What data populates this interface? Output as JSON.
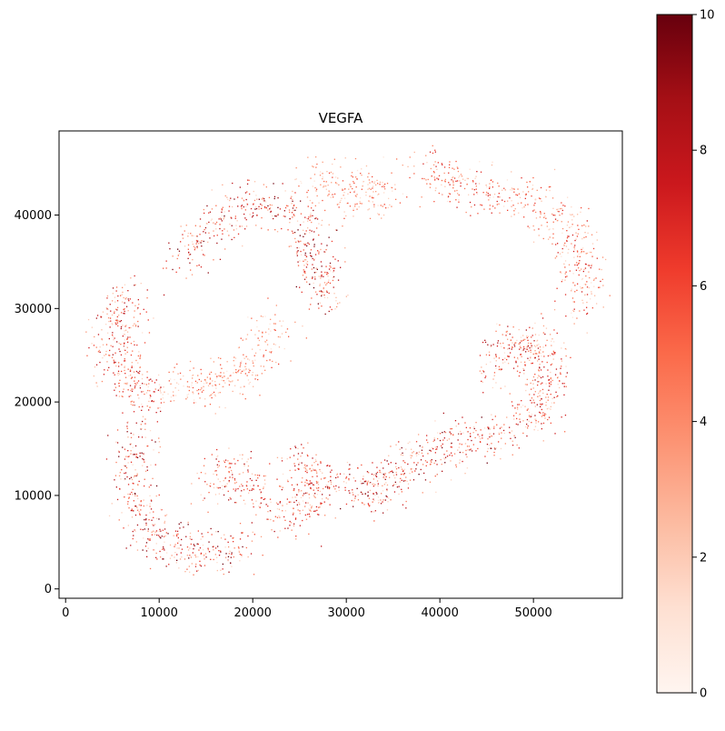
{
  "chart_data": {
    "type": "scatter",
    "title": "VEGFA",
    "xlabel": "",
    "ylabel": "",
    "xlim": [
      -700,
      59500
    ],
    "ylim": [
      -1000,
      49000
    ],
    "xticks": [
      0,
      10000,
      20000,
      30000,
      40000,
      50000
    ],
    "yticks": [
      0,
      10000,
      20000,
      30000,
      40000
    ],
    "grid": false,
    "colormap": "Reds",
    "colorbar": {
      "min": 0,
      "max": 10,
      "ticks": [
        0,
        2,
        4,
        6,
        8,
        10
      ]
    },
    "colors": {
      "low": "#fff5f0",
      "mid": "#f44f39",
      "high": "#67000d"
    },
    "regions": [
      {
        "name": "upper-left arc",
        "intensity": 8,
        "points": [
          [
            12000,
            34000
          ],
          [
            15000,
            38000
          ],
          [
            18000,
            40500
          ],
          [
            21000,
            41500
          ],
          [
            24500,
            39500
          ],
          [
            26500,
            36500
          ],
          [
            27500,
            33500
          ],
          [
            28000,
            31000
          ]
        ]
      },
      {
        "name": "left edge",
        "intensity": 7,
        "points": [
          [
            7500,
            32000
          ],
          [
            5500,
            29000
          ],
          [
            5200,
            26500
          ],
          [
            6000,
            23500
          ],
          [
            7500,
            21000
          ],
          [
            9500,
            20000
          ]
        ]
      },
      {
        "name": "left inner ridge",
        "intensity": 5,
        "points": [
          [
            11500,
            22000
          ],
          [
            14500,
            21500
          ],
          [
            18000,
            22500
          ],
          [
            20500,
            25000
          ],
          [
            22500,
            29000
          ]
        ]
      },
      {
        "name": "lower-left loop",
        "intensity": 8,
        "points": [
          [
            7500,
            16500
          ],
          [
            7000,
            13000
          ],
          [
            7500,
            9000
          ],
          [
            9000,
            6000
          ],
          [
            12000,
            4500
          ],
          [
            16000,
            4000
          ],
          [
            19500,
            5000
          ]
        ]
      },
      {
        "name": "lower-middle cluster",
        "intensity": 7,
        "points": [
          [
            15000,
            11000
          ],
          [
            18000,
            12500
          ],
          [
            21000,
            10500
          ],
          [
            24000,
            8000
          ],
          [
            26500,
            10000
          ],
          [
            27500,
            12500
          ],
          [
            23000,
            14000
          ]
        ]
      },
      {
        "name": "middle bottom",
        "intensity": 8,
        "points": [
          [
            30000,
            11500
          ],
          [
            32500,
            10500
          ],
          [
            35000,
            11500
          ],
          [
            37000,
            13500
          ],
          [
            40000,
            15500
          ],
          [
            43000,
            16000
          ],
          [
            46500,
            16000
          ]
        ]
      },
      {
        "name": "right lobe",
        "intensity": 7,
        "points": [
          [
            48500,
            17000
          ],
          [
            50500,
            19000
          ],
          [
            51500,
            22000
          ],
          [
            51000,
            25000
          ],
          [
            49500,
            27000
          ],
          [
            47000,
            26000
          ],
          [
            46500,
            22500
          ]
        ]
      },
      {
        "name": "top right arc",
        "intensity": 6,
        "points": [
          [
            38000,
            45000
          ],
          [
            41000,
            43500
          ],
          [
            45000,
            42500
          ],
          [
            49000,
            42000
          ],
          [
            52500,
            40000
          ],
          [
            54500,
            37000
          ],
          [
            55500,
            33500
          ],
          [
            55000,
            30000
          ]
        ]
      },
      {
        "name": "top middle strip",
        "intensity": 5,
        "points": [
          [
            26000,
            44000
          ],
          [
            29000,
            42500
          ],
          [
            32000,
            42500
          ],
          [
            34500,
            42500
          ]
        ]
      }
    ]
  }
}
